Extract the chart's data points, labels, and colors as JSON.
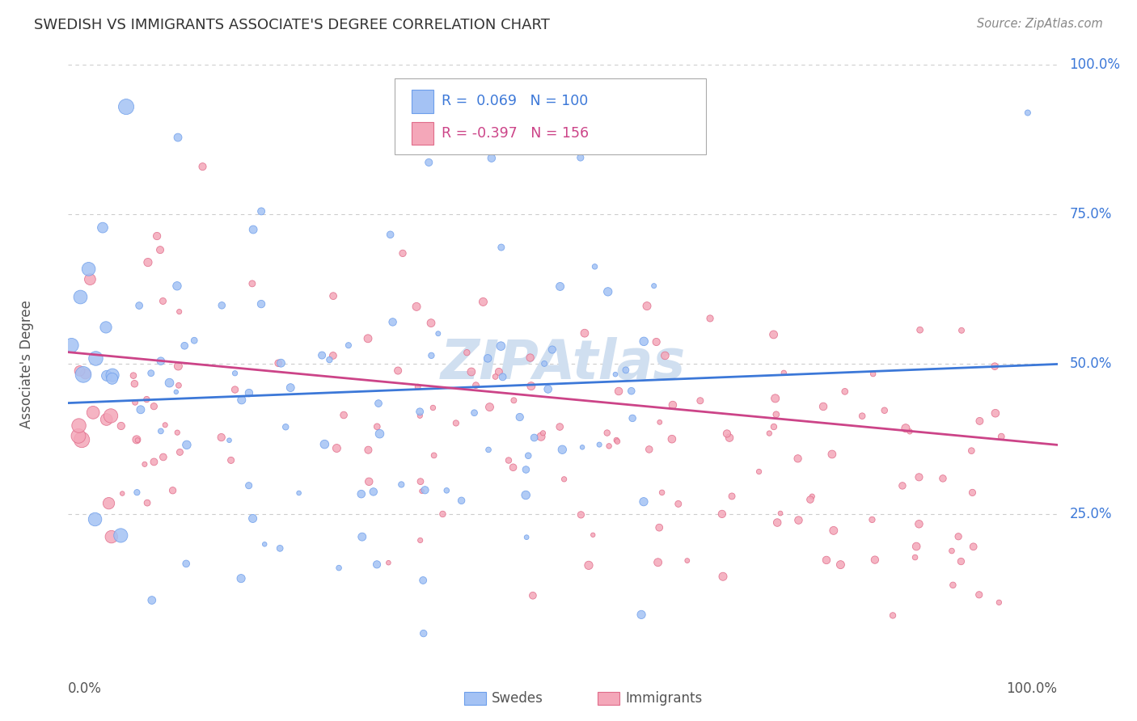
{
  "title": "SWEDISH VS IMMIGRANTS ASSOCIATE'S DEGREE CORRELATION CHART",
  "source": "Source: ZipAtlas.com",
  "ylabel": "Associate's Degree",
  "legend_swedes": "Swedes",
  "legend_immigrants": "Immigrants",
  "r_swedes": 0.069,
  "n_swedes": 100,
  "r_immigrants": -0.397,
  "n_immigrants": 156,
  "blue_color": "#a4c2f4",
  "blue_edge_color": "#6d9eeb",
  "blue_line_color": "#3c78d8",
  "pink_color": "#f4a7b9",
  "pink_edge_color": "#e06c8a",
  "pink_line_color": "#cc4488",
  "watermark": "ZIPAtlas",
  "watermark_color": "#d0dff0",
  "background_color": "#ffffff",
  "grid_color": "#cccccc",
  "right_label_color": "#3c78d8",
  "title_color": "#333333",
  "source_color": "#888888",
  "axis_label_color": "#555555",
  "legend_box_color": "#aaaaaa"
}
